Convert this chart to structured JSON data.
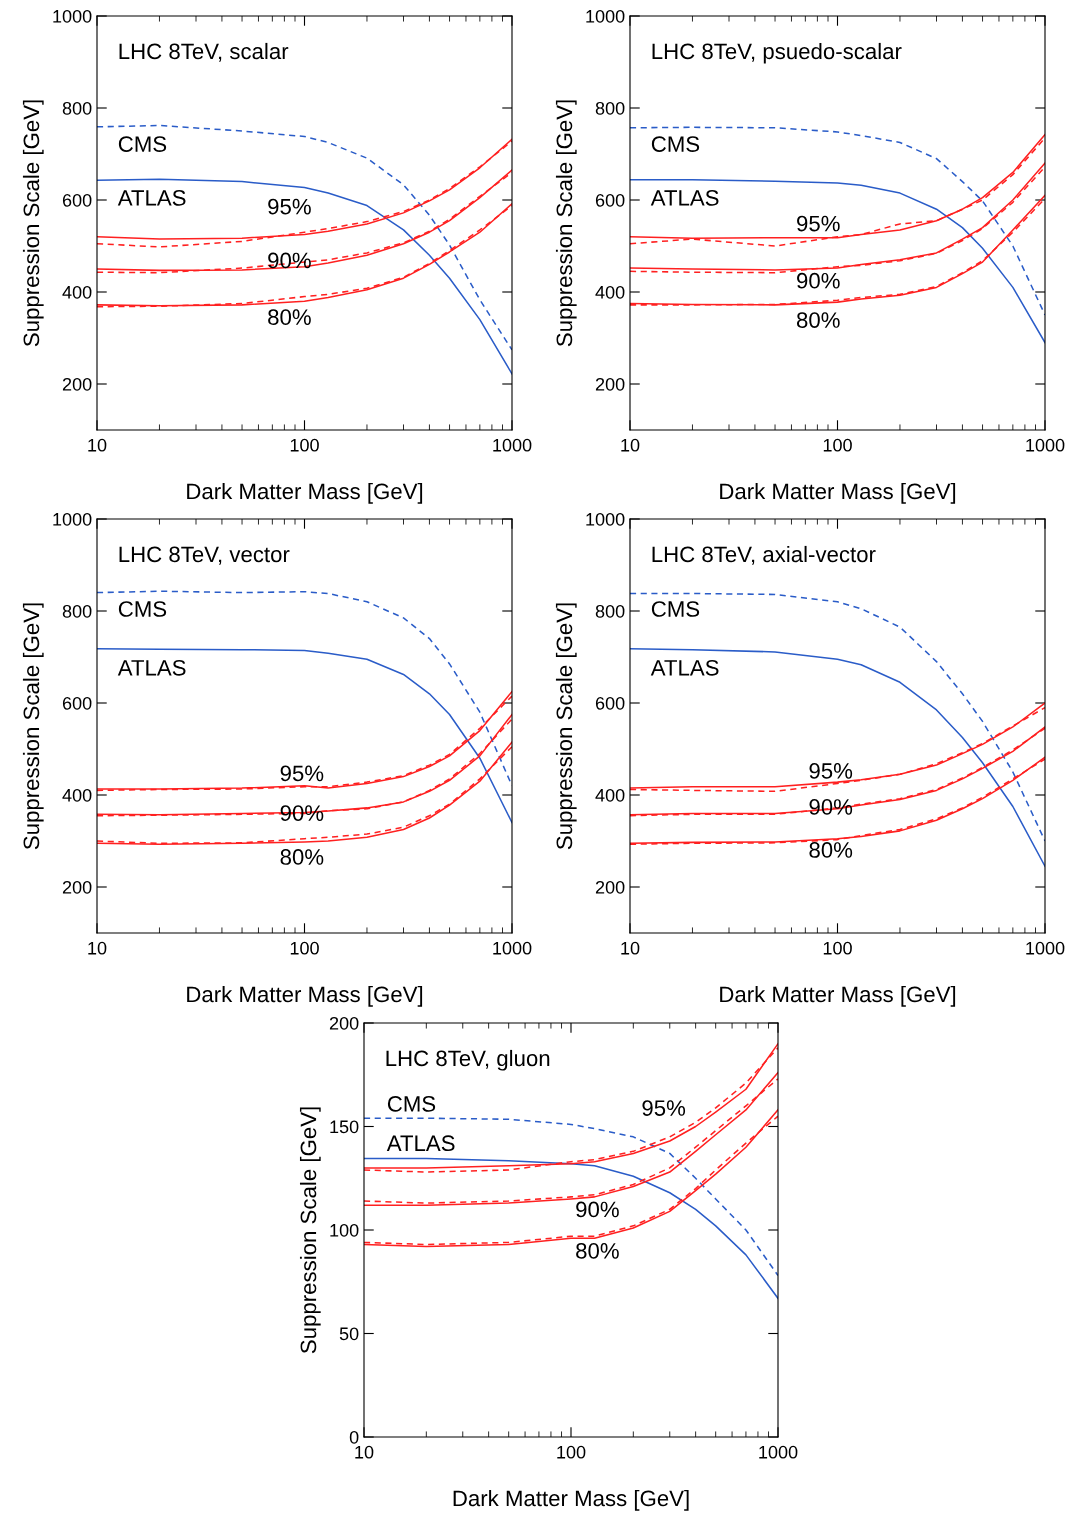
{
  "chart_data": [
    {
      "type": "line",
      "title": "LHC 8TeV, scalar",
      "xlabel": "Dark Matter Mass [GeV]",
      "ylabel": "Suppression Scale [GeV]",
      "log": "x",
      "grid": false,
      "xlim": [
        10,
        1000
      ],
      "xticks": [
        10,
        100,
        1000
      ],
      "ylim": [
        100,
        1000
      ],
      "yticks": [
        200,
        400,
        600,
        800,
        1000
      ],
      "x": [
        10,
        20,
        50,
        100,
        130,
        200,
        300,
        400,
        500,
        700,
        1000
      ],
      "series": [
        {
          "color": "#2a5cc8",
          "line_style": "dashed",
          "values": [
            759,
            762,
            750,
            738,
            725,
            691,
            633,
            567,
            502,
            383,
            274
          ]
        },
        {
          "color": "#2a5cc8",
          "line_style": "solid",
          "values": [
            643,
            645,
            640,
            627,
            615,
            588,
            535,
            480,
            430,
            340,
            222
          ]
        },
        {
          "color": "#ff2020",
          "line_style": "solid",
          "values": [
            520,
            515,
            517,
            525,
            532,
            548,
            572,
            598,
            622,
            670,
            732
          ]
        },
        {
          "color": "#ff2020",
          "line_style": "dashed",
          "values": [
            505,
            498,
            510,
            530,
            538,
            553,
            575,
            600,
            625,
            672,
            728
          ]
        },
        {
          "color": "#ff2020",
          "line_style": "solid",
          "values": [
            450,
            447,
            448,
            455,
            463,
            480,
            505,
            530,
            555,
            605,
            665
          ]
        },
        {
          "color": "#ff2020",
          "line_style": "dashed",
          "values": [
            443,
            442,
            452,
            465,
            470,
            485,
            507,
            532,
            558,
            608,
            660
          ]
        },
        {
          "color": "#ff2020",
          "line_style": "solid",
          "values": [
            372,
            370,
            372,
            380,
            388,
            405,
            430,
            460,
            487,
            530,
            592
          ]
        },
        {
          "color": "#ff2020",
          "line_style": "dashed",
          "values": [
            368,
            369,
            375,
            390,
            395,
            408,
            432,
            462,
            490,
            535,
            588
          ]
        }
      ],
      "annotations": [
        "CMS",
        "ATLAS",
        "95%",
        "90%",
        "80%"
      ]
    },
    {
      "type": "line",
      "title": "LHC 8TeV, psuedo-scalar",
      "xlabel": "Dark Matter Mass [GeV]",
      "ylabel": "Suppression Scale [GeV]",
      "log": "x",
      "grid": false,
      "xlim": [
        10,
        1000
      ],
      "xticks": [
        10,
        100,
        1000
      ],
      "ylim": [
        100,
        1000
      ],
      "yticks": [
        200,
        400,
        600,
        800,
        1000
      ],
      "x": [
        10,
        20,
        50,
        100,
        130,
        200,
        300,
        400,
        500,
        700,
        1000
      ],
      "series": [
        {
          "color": "#2a5cc8",
          "line_style": "dashed",
          "values": [
            757,
            758,
            757,
            748,
            740,
            725,
            690,
            640,
            598,
            500,
            350
          ]
        },
        {
          "color": "#2a5cc8",
          "line_style": "solid",
          "values": [
            644,
            644,
            641,
            637,
            632,
            615,
            580,
            540,
            495,
            410,
            290
          ]
        },
        {
          "color": "#ff2020",
          "line_style": "solid",
          "values": [
            520,
            517,
            518,
            518,
            525,
            535,
            555,
            580,
            605,
            660,
            742
          ]
        },
        {
          "color": "#ff2020",
          "line_style": "dashed",
          "values": [
            505,
            515,
            500,
            520,
            525,
            548,
            555,
            580,
            600,
            655,
            735
          ]
        },
        {
          "color": "#ff2020",
          "line_style": "solid",
          "values": [
            452,
            450,
            448,
            452,
            460,
            470,
            485,
            515,
            540,
            600,
            680
          ]
        },
        {
          "color": "#ff2020",
          "line_style": "dashed",
          "values": [
            445,
            443,
            442,
            455,
            458,
            468,
            484,
            512,
            538,
            595,
            672
          ]
        },
        {
          "color": "#ff2020",
          "line_style": "solid",
          "values": [
            375,
            373,
            372,
            378,
            385,
            393,
            410,
            440,
            465,
            535,
            610
          ]
        },
        {
          "color": "#ff2020",
          "line_style": "dashed",
          "values": [
            372,
            372,
            373,
            382,
            388,
            395,
            412,
            442,
            468,
            530,
            603
          ]
        }
      ],
      "annotations": [
        "CMS",
        "ATLAS",
        "95%",
        "90%",
        "80%"
      ]
    },
    {
      "type": "line",
      "title": "LHC 8TeV, vector",
      "xlabel": "Dark Matter Mass [GeV]",
      "ylabel": "Suppression Scale [GeV]",
      "log": "x",
      "grid": false,
      "xlim": [
        10,
        1000
      ],
      "xticks": [
        10,
        100,
        1000
      ],
      "ylim": [
        100,
        1000
      ],
      "yticks": [
        200,
        400,
        600,
        800,
        1000
      ],
      "x": [
        10,
        20,
        50,
        100,
        130,
        200,
        300,
        400,
        500,
        700,
        1000
      ],
      "series": [
        {
          "color": "#2a5cc8",
          "line_style": "dashed",
          "values": [
            840,
            843,
            840,
            842,
            838,
            820,
            785,
            740,
            685,
            580,
            420
          ]
        },
        {
          "color": "#2a5cc8",
          "line_style": "solid",
          "values": [
            718,
            717,
            716,
            714,
            708,
            695,
            662,
            620,
            575,
            480,
            340
          ]
        },
        {
          "color": "#ff2020",
          "line_style": "solid",
          "values": [
            413,
            413,
            415,
            420,
            415,
            425,
            440,
            462,
            485,
            540,
            625
          ]
        },
        {
          "color": "#ff2020",
          "line_style": "dashed",
          "values": [
            410,
            412,
            413,
            418,
            418,
            428,
            442,
            465,
            488,
            545,
            615
          ]
        },
        {
          "color": "#ff2020",
          "line_style": "solid",
          "values": [
            358,
            357,
            360,
            362,
            365,
            372,
            385,
            408,
            432,
            485,
            575
          ]
        },
        {
          "color": "#ff2020",
          "line_style": "dashed",
          "values": [
            355,
            356,
            358,
            360,
            366,
            370,
            385,
            410,
            435,
            490,
            565
          ]
        },
        {
          "color": "#ff2020",
          "line_style": "solid",
          "values": [
            295,
            293,
            295,
            298,
            300,
            308,
            325,
            350,
            378,
            430,
            515
          ]
        },
        {
          "color": "#ff2020",
          "line_style": "dashed",
          "values": [
            300,
            295,
            296,
            305,
            308,
            315,
            330,
            355,
            380,
            435,
            505
          ]
        }
      ],
      "annotations": [
        "CMS",
        "ATLAS",
        "95%",
        "90%",
        "80%"
      ]
    },
    {
      "type": "line",
      "title": "LHC 8TeV, axial-vector",
      "xlabel": "Dark Matter Mass [GeV]",
      "ylabel": "Suppression Scale [GeV]",
      "log": "x",
      "grid": false,
      "xlim": [
        10,
        1000
      ],
      "xticks": [
        10,
        100,
        1000
      ],
      "ylim": [
        100,
        1000
      ],
      "yticks": [
        200,
        400,
        600,
        800,
        1000
      ],
      "x": [
        10,
        20,
        50,
        100,
        130,
        200,
        300,
        400,
        500,
        700,
        1000
      ],
      "series": [
        {
          "color": "#2a5cc8",
          "line_style": "dashed",
          "values": [
            838,
            838,
            836,
            820,
            805,
            765,
            690,
            620,
            560,
            450,
            300
          ]
        },
        {
          "color": "#2a5cc8",
          "line_style": "solid",
          "values": [
            718,
            716,
            711,
            695,
            683,
            645,
            585,
            525,
            470,
            375,
            245
          ]
        },
        {
          "color": "#ff2020",
          "line_style": "solid",
          "values": [
            415,
            418,
            418,
            428,
            433,
            445,
            465,
            490,
            510,
            548,
            600
          ]
        },
        {
          "color": "#ff2020",
          "line_style": "dashed",
          "values": [
            412,
            410,
            408,
            425,
            432,
            445,
            468,
            492,
            512,
            550,
            590
          ]
        },
        {
          "color": "#ff2020",
          "line_style": "solid",
          "values": [
            357,
            360,
            360,
            370,
            378,
            390,
            410,
            435,
            458,
            495,
            548
          ]
        },
        {
          "color": "#ff2020",
          "line_style": "dashed",
          "values": [
            355,
            358,
            358,
            372,
            380,
            392,
            412,
            437,
            460,
            498,
            545
          ]
        },
        {
          "color": "#ff2020",
          "line_style": "solid",
          "values": [
            295,
            297,
            298,
            305,
            310,
            322,
            345,
            370,
            392,
            432,
            482
          ]
        },
        {
          "color": "#ff2020",
          "line_style": "dashed",
          "values": [
            293,
            295,
            296,
            303,
            312,
            325,
            348,
            372,
            395,
            435,
            478
          ]
        }
      ],
      "annotations": [
        "CMS",
        "ATLAS",
        "95%",
        "90%",
        "80%"
      ]
    },
    {
      "type": "line",
      "title": "LHC 8TeV, gluon",
      "xlabel": "Dark Matter Mass [GeV]",
      "ylabel": "Suppression Scale [GeV]",
      "log": "x",
      "grid": false,
      "xlim": [
        10,
        1000
      ],
      "xticks": [
        10,
        100,
        1000
      ],
      "ylim": [
        0,
        200
      ],
      "yticks": [
        0,
        50,
        100,
        150,
        200
      ],
      "x": [
        10,
        20,
        50,
        100,
        130,
        200,
        300,
        400,
        500,
        700,
        1000
      ],
      "series": [
        {
          "color": "#2a5cc8",
          "line_style": "dashed",
          "values": [
            154,
            154,
            153.5,
            151,
            149,
            145,
            137,
            125,
            115,
            100,
            78
          ]
        },
        {
          "color": "#2a5cc8",
          "line_style": "solid",
          "values": [
            134.5,
            134.5,
            133.5,
            132,
            131,
            126,
            118,
            110,
            102,
            88,
            67
          ]
        },
        {
          "color": "#ff2020",
          "line_style": "solid",
          "values": [
            130,
            130,
            131,
            132,
            133,
            137,
            143,
            150,
            157,
            168,
            190
          ]
        },
        {
          "color": "#ff2020",
          "line_style": "dashed",
          "values": [
            129,
            128,
            129,
            133,
            134,
            138,
            145,
            152,
            159,
            171,
            188
          ]
        },
        {
          "color": "#ff2020",
          "line_style": "solid",
          "values": [
            112,
            112,
            113,
            115,
            116,
            121,
            128,
            138,
            146,
            158,
            176
          ]
        },
        {
          "color": "#ff2020",
          "line_style": "dashed",
          "values": [
            114,
            113,
            114,
            116,
            117,
            122,
            130,
            140,
            148,
            160,
            173
          ]
        },
        {
          "color": "#ff2020",
          "line_style": "solid",
          "values": [
            93,
            92,
            93,
            96,
            96,
            101,
            109,
            119,
            127,
            140,
            158
          ]
        },
        {
          "color": "#ff2020",
          "line_style": "dashed",
          "values": [
            94,
            93,
            94,
            97,
            97,
            102,
            110,
            120,
            129,
            142,
            155
          ]
        }
      ],
      "annotations": [
        "CMS",
        "ATLAS",
        "95%",
        "90%",
        "80%"
      ]
    }
  ]
}
